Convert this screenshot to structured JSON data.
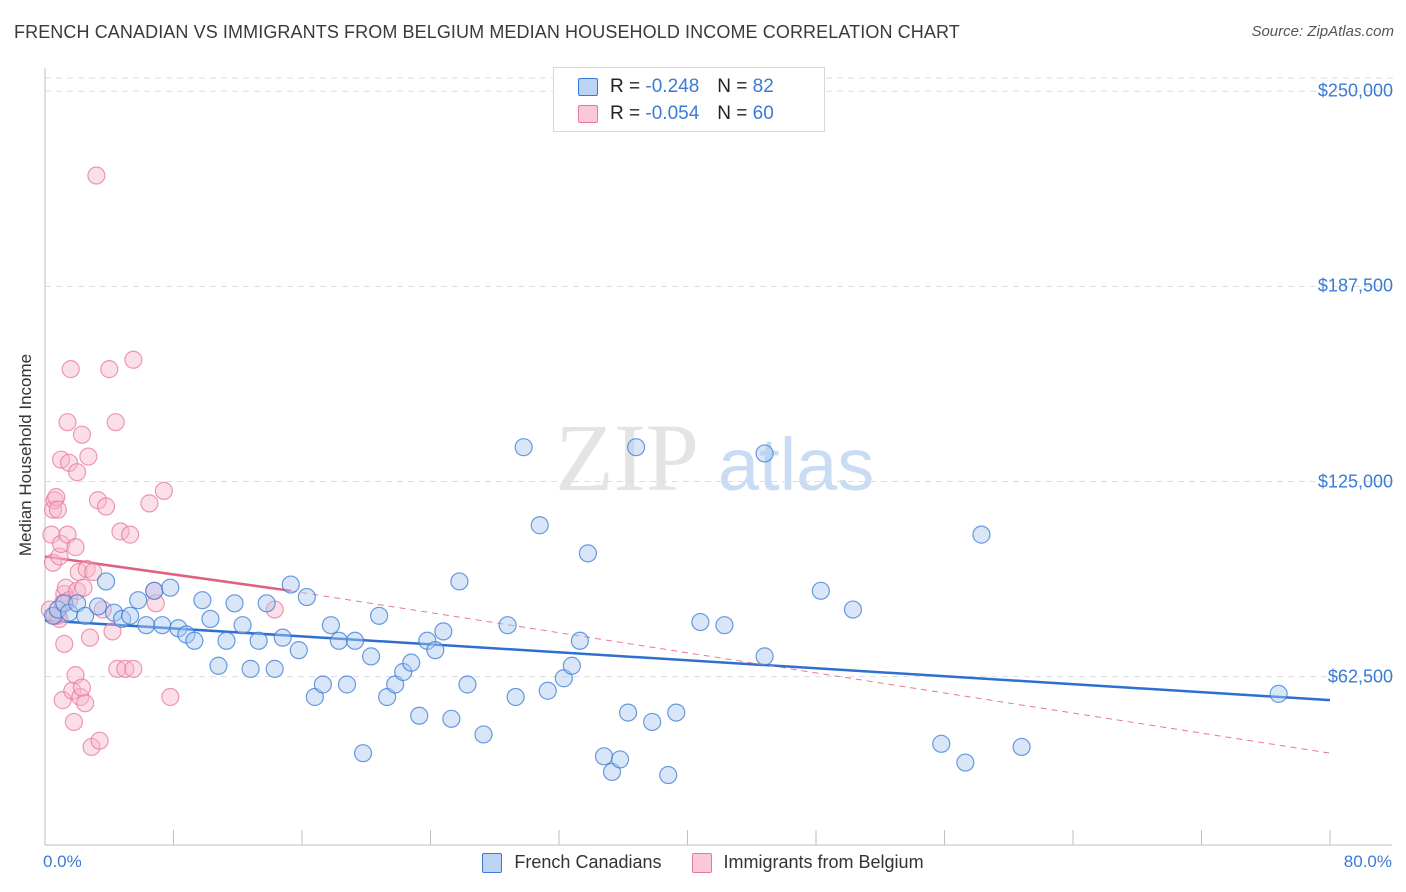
{
  "title": "FRENCH CANADIAN VS IMMIGRANTS FROM BELGIUM MEDIAN HOUSEHOLD INCOME CORRELATION CHART",
  "source": "Source: ZipAtlas.com",
  "watermark": {
    "zip": "ZIP",
    "atlas": "atlas"
  },
  "colors": {
    "blue": "#3a7bd5",
    "blue_fill": "#a9c8f0",
    "pink": "#e8789a",
    "pink_fill": "#f6b8cb",
    "grid": "#dcdcdc"
  },
  "legend": {
    "rows": [
      {
        "r_label": "R =",
        "r_value": "-0.248",
        "n_label": "N =",
        "n_value": "82"
      },
      {
        "r_label": "R =",
        "r_value": "-0.054",
        "n_label": "N =",
        "n_value": "60"
      }
    ]
  },
  "bottom_legend": [
    "French Canadians",
    "Immigrants from Belgium"
  ],
  "chart_data": {
    "type": "scatter",
    "title": "FRENCH CANADIAN VS IMMIGRANTS FROM BELGIUM MEDIAN HOUSEHOLD INCOME CORRELATION CHART",
    "ylabel": "Median Household Income",
    "xlabel_min": "0.0%",
    "xlabel_max": "80.0%",
    "xlim": [
      0,
      80
    ],
    "ylim": [
      15000,
      260000
    ],
    "yticks": [
      {
        "value": 62500,
        "label": "$62,500"
      },
      {
        "value": 125000,
        "label": "$125,000"
      },
      {
        "value": 187500,
        "label": "$187,500"
      },
      {
        "value": 250000,
        "label": "$250,000"
      }
    ],
    "series": [
      {
        "name": "French Canadians",
        "color": "#3a7bd5",
        "trend": {
          "x": [
            0,
            80
          ],
          "y": [
            80500,
            55000
          ],
          "style": "solid"
        },
        "points": [
          [
            0.5,
            82000
          ],
          [
            0.8,
            84000
          ],
          [
            1.2,
            86000
          ],
          [
            1.5,
            83000
          ],
          [
            2.0,
            86000
          ],
          [
            2.5,
            82000
          ],
          [
            3.3,
            85000
          ],
          [
            3.8,
            93000
          ],
          [
            4.3,
            83000
          ],
          [
            4.8,
            81000
          ],
          [
            5.3,
            82000
          ],
          [
            5.8,
            87000
          ],
          [
            6.3,
            79000
          ],
          [
            6.8,
            90000
          ],
          [
            7.3,
            79000
          ],
          [
            7.8,
            91000
          ],
          [
            8.3,
            78000
          ],
          [
            8.8,
            76000
          ],
          [
            9.3,
            74000
          ],
          [
            9.8,
            87000
          ],
          [
            10.3,
            81000
          ],
          [
            10.8,
            66000
          ],
          [
            11.3,
            74000
          ],
          [
            11.8,
            86000
          ],
          [
            12.3,
            79000
          ],
          [
            12.8,
            65000
          ],
          [
            13.3,
            74000
          ],
          [
            13.8,
            86000
          ],
          [
            14.3,
            65000
          ],
          [
            14.8,
            75000
          ],
          [
            15.3,
            92000
          ],
          [
            15.8,
            71000
          ],
          [
            16.3,
            88000
          ],
          [
            16.8,
            56000
          ],
          [
            17.3,
            60000
          ],
          [
            17.8,
            79000
          ],
          [
            18.3,
            74000
          ],
          [
            18.8,
            60000
          ],
          [
            19.3,
            74000
          ],
          [
            19.8,
            38000
          ],
          [
            20.3,
            69000
          ],
          [
            20.8,
            82000
          ],
          [
            21.3,
            56000
          ],
          [
            21.8,
            60000
          ],
          [
            22.3,
            64000
          ],
          [
            22.8,
            67000
          ],
          [
            23.3,
            50000
          ],
          [
            23.8,
            74000
          ],
          [
            24.3,
            71000
          ],
          [
            24.8,
            77000
          ],
          [
            25.3,
            49000
          ],
          [
            25.8,
            93000
          ],
          [
            26.3,
            60000
          ],
          [
            27.3,
            44000
          ],
          [
            28.8,
            79000
          ],
          [
            29.3,
            56000
          ],
          [
            29.8,
            136000
          ],
          [
            30.8,
            111000
          ],
          [
            31.3,
            58000
          ],
          [
            32.3,
            62000
          ],
          [
            32.8,
            66000
          ],
          [
            33.3,
            74000
          ],
          [
            33.8,
            102000
          ],
          [
            34.8,
            37000
          ],
          [
            35.3,
            32000
          ],
          [
            35.8,
            36000
          ],
          [
            36.3,
            51000
          ],
          [
            36.8,
            136000
          ],
          [
            37.8,
            48000
          ],
          [
            38.8,
            31000
          ],
          [
            39.3,
            51000
          ],
          [
            40.8,
            80000
          ],
          [
            42.3,
            79000
          ],
          [
            44.8,
            69000
          ],
          [
            44.8,
            134000
          ],
          [
            48.3,
            90000
          ],
          [
            50.3,
            84000
          ],
          [
            55.8,
            41000
          ],
          [
            57.3,
            35000
          ],
          [
            58.3,
            108000
          ],
          [
            60.8,
            40000
          ],
          [
            76.8,
            57000
          ]
        ]
      },
      {
        "name": "Immigrants from Belgium",
        "color": "#e8789a",
        "trend": {
          "x": [
            0,
            15.3
          ],
          "y": [
            101000,
            90000
          ],
          "style": "solid",
          "dashed_x": [
            15.3,
            80
          ],
          "dashed_y": [
            90000,
            38000
          ]
        },
        "points": [
          [
            0.3,
            84000
          ],
          [
            0.4,
            108000
          ],
          [
            0.5,
            99000
          ],
          [
            0.5,
            116000
          ],
          [
            0.6,
            119000
          ],
          [
            0.7,
            120000
          ],
          [
            0.8,
            116000
          ],
          [
            0.8,
            82000
          ],
          [
            0.9,
            81000
          ],
          [
            0.9,
            101000
          ],
          [
            1.0,
            105000
          ],
          [
            1.0,
            132000
          ],
          [
            1.1,
            55000
          ],
          [
            1.2,
            89000
          ],
          [
            1.2,
            73000
          ],
          [
            1.3,
            91000
          ],
          [
            1.4,
            108000
          ],
          [
            1.4,
            144000
          ],
          [
            1.5,
            131000
          ],
          [
            1.5,
            87000
          ],
          [
            1.6,
            161000
          ],
          [
            1.7,
            58000
          ],
          [
            1.8,
            48000
          ],
          [
            1.9,
            63000
          ],
          [
            1.9,
            104000
          ],
          [
            2.0,
            90000
          ],
          [
            2.0,
            128000
          ],
          [
            2.1,
            96000
          ],
          [
            2.2,
            56000
          ],
          [
            2.3,
            59000
          ],
          [
            2.3,
            140000
          ],
          [
            2.4,
            91000
          ],
          [
            2.5,
            54000
          ],
          [
            2.6,
            97000
          ],
          [
            2.7,
            133000
          ],
          [
            2.8,
            75000
          ],
          [
            2.9,
            40000
          ],
          [
            3.0,
            96000
          ],
          [
            3.2,
            223000
          ],
          [
            3.3,
            119000
          ],
          [
            3.4,
            42000
          ],
          [
            3.6,
            84000
          ],
          [
            3.8,
            117000
          ],
          [
            4.0,
            161000
          ],
          [
            4.2,
            77000
          ],
          [
            4.4,
            144000
          ],
          [
            4.5,
            65000
          ],
          [
            4.7,
            109000
          ],
          [
            5.0,
            65000
          ],
          [
            5.3,
            108000
          ],
          [
            5.5,
            164000
          ],
          [
            5.5,
            65000
          ],
          [
            6.5,
            118000
          ],
          [
            6.8,
            90000
          ],
          [
            6.9,
            86000
          ],
          [
            7.4,
            122000
          ],
          [
            7.8,
            56000
          ],
          [
            14.3,
            84000
          ],
          [
            0.6,
            82000
          ],
          [
            1.1,
            86000
          ]
        ]
      }
    ]
  }
}
